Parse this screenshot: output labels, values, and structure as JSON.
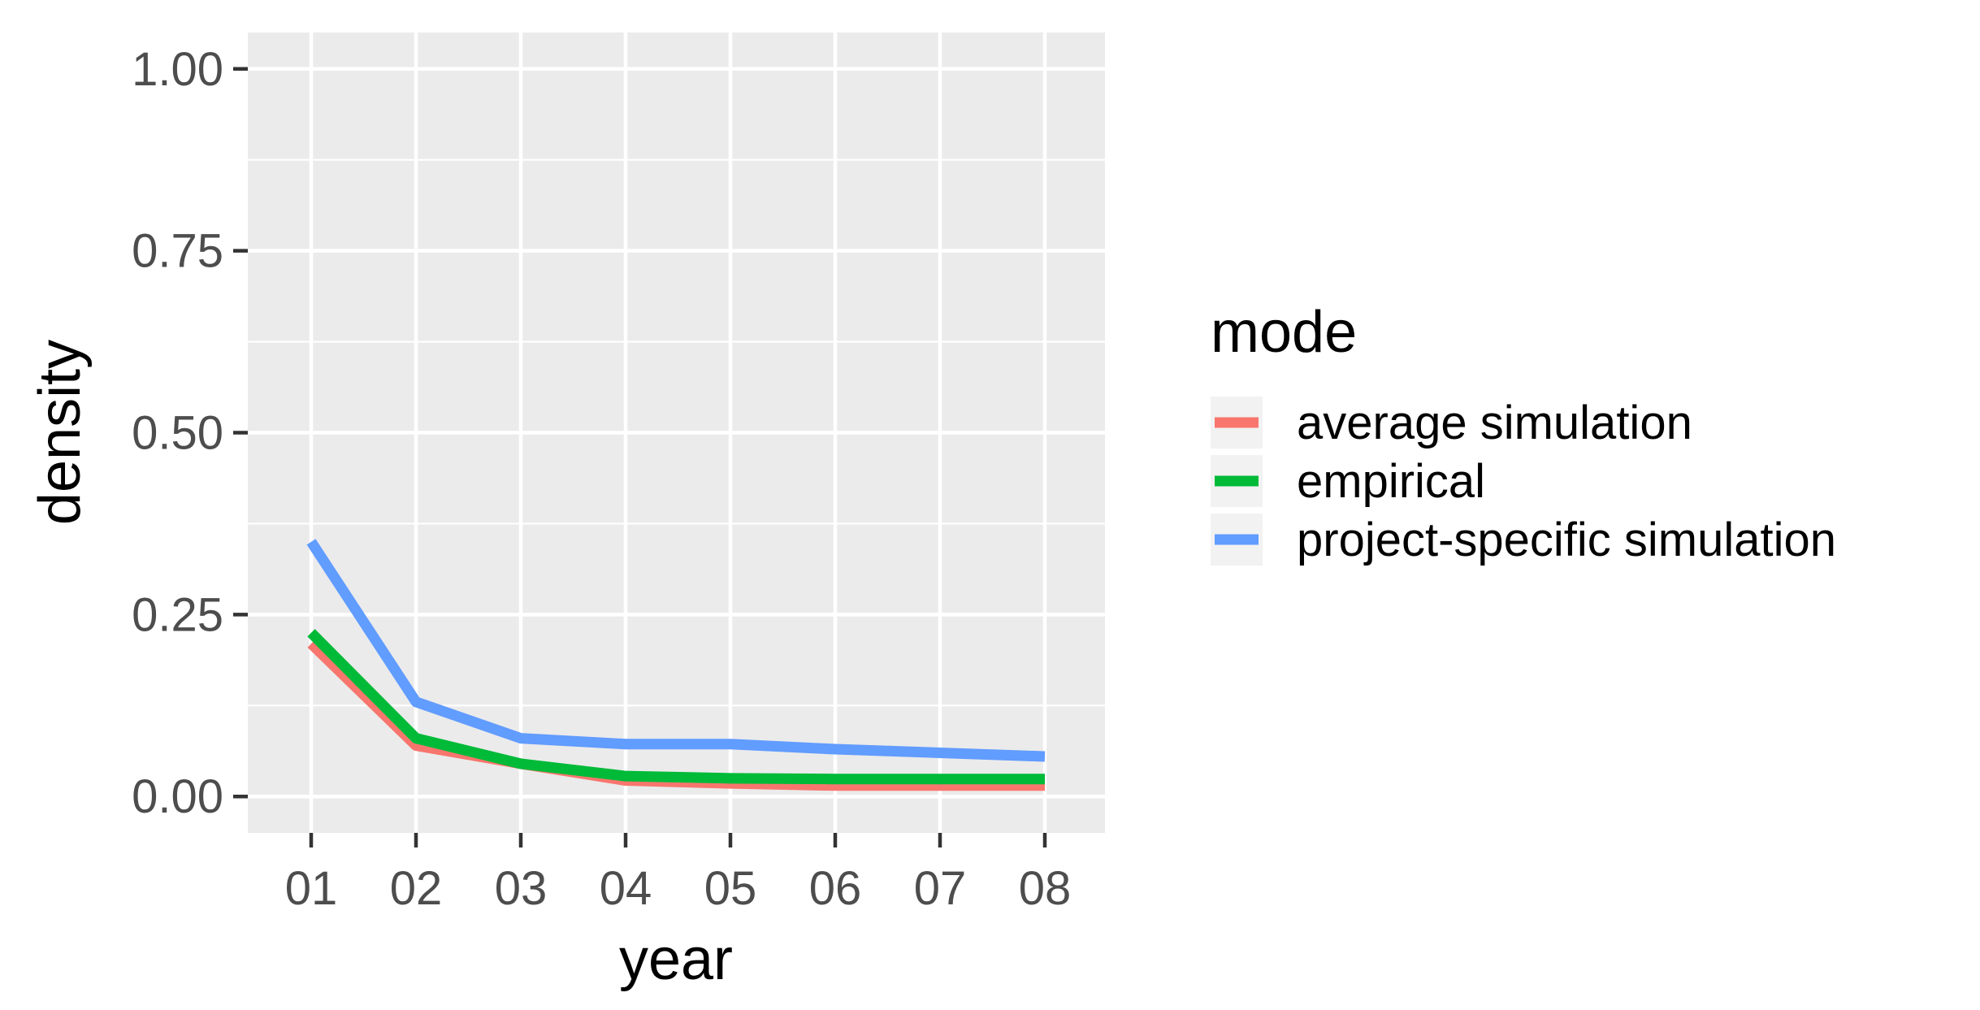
{
  "chart_data": {
    "type": "line",
    "xlabel": "year",
    "ylabel": "density",
    "categories": [
      "01",
      "02",
      "03",
      "04",
      "05",
      "06",
      "07",
      "08"
    ],
    "ylim": [
      -0.05,
      1.05
    ],
    "yticks": [
      0,
      0.25,
      0.5,
      0.75,
      1.0
    ],
    "ytick_labels": [
      "0.00",
      "0.25",
      "0.50",
      "0.75",
      "1.00"
    ],
    "grid": true,
    "legend": {
      "title": "mode",
      "position": "right"
    },
    "series": [
      {
        "name": "average simulation",
        "color": "#F8766D",
        "values": [
          0.21,
          0.07,
          0.045,
          0.022,
          0.018,
          0.015,
          0.015,
          0.015
        ]
      },
      {
        "name": "empirical",
        "color": "#00BA38",
        "values": [
          0.225,
          0.08,
          0.045,
          0.028,
          0.025,
          0.024,
          0.024,
          0.024
        ]
      },
      {
        "name": "project-specific simulation",
        "color": "#619CFF",
        "values": [
          0.35,
          0.13,
          0.08,
          0.072,
          0.072,
          0.065,
          0.06,
          0.055
        ]
      }
    ]
  }
}
